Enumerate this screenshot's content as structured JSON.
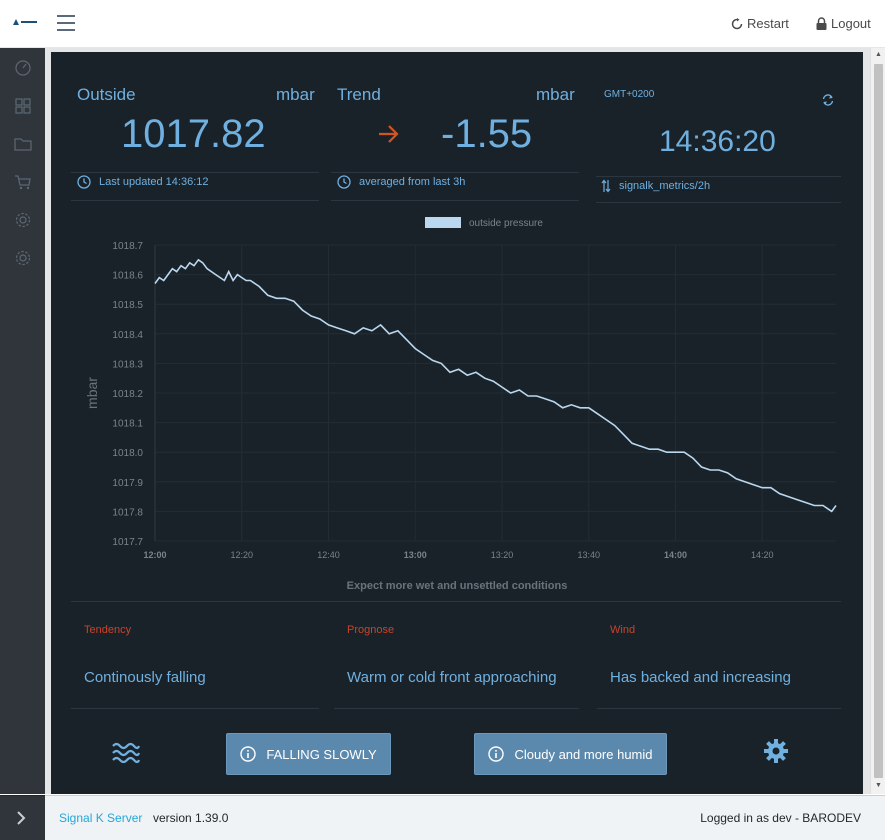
{
  "header": {
    "logo_text": "Signal K",
    "restart_label": "Restart",
    "logout_label": "Logout"
  },
  "sidebar": {
    "items": [
      {
        "icon": "speedometer-icon"
      },
      {
        "icon": "grid-icon"
      },
      {
        "icon": "folder-icon"
      },
      {
        "icon": "cart-icon"
      },
      {
        "icon": "gear-icon"
      },
      {
        "icon": "gear-icon"
      }
    ]
  },
  "widgets": {
    "outside": {
      "label": "Outside",
      "unit": "mbar",
      "value": "1017.82",
      "footer": "Last updated 14:36:12"
    },
    "trend": {
      "label": "Trend",
      "unit": "mbar",
      "value": "-1.55",
      "footer": "averaged from last 3h",
      "arrow_color": "#d4541f"
    },
    "clock": {
      "timezone": "GMT+0200",
      "time": "14:36:20",
      "footer": "signalk_metrics/2h"
    }
  },
  "chart_data": {
    "type": "line",
    "legend": "outside pressure",
    "ylabel": "mbar",
    "xlabel": "",
    "ylim": [
      1017.7,
      1018.7
    ],
    "yticks": [
      "1017.7",
      "1017.8",
      "1017.9",
      "1018.0",
      "1018.1",
      "1018.2",
      "1018.3",
      "1018.4",
      "1018.5",
      "1018.6",
      "1018.7"
    ],
    "xticks": [
      {
        "label": "12:00",
        "bold": true
      },
      {
        "label": "12:20",
        "bold": false
      },
      {
        "label": "12:40",
        "bold": false
      },
      {
        "label": "13:00",
        "bold": true
      },
      {
        "label": "13:20",
        "bold": false
      },
      {
        "label": "13:40",
        "bold": false
      },
      {
        "label": "14:00",
        "bold": true
      },
      {
        "label": "14:20",
        "bold": false
      }
    ],
    "x_minutes_start": 0,
    "x_minutes_end": 157,
    "series": [
      {
        "name": "outside pressure",
        "color": "#b9d8f0",
        "x": [
          0,
          1,
          2,
          3,
          4,
          5,
          6,
          7,
          8,
          9,
          10,
          11,
          12,
          14,
          16,
          17,
          18,
          19,
          20,
          21,
          22,
          24,
          26,
          28,
          30,
          32,
          34,
          36,
          38,
          40,
          42,
          44,
          46,
          48,
          50,
          52,
          54,
          56,
          58,
          60,
          62,
          64,
          66,
          68,
          70,
          72,
          74,
          76,
          78,
          80,
          82,
          84,
          86,
          88,
          90,
          92,
          94,
          96,
          98,
          100,
          102,
          104,
          106,
          108,
          110,
          112,
          114,
          116,
          118,
          120,
          122,
          124,
          126,
          128,
          130,
          132,
          134,
          136,
          138,
          140,
          142,
          144,
          146,
          148,
          150,
          152,
          154,
          155,
          156,
          157
        ],
        "values": [
          1018.57,
          1018.59,
          1018.58,
          1018.6,
          1018.62,
          1018.61,
          1018.63,
          1018.62,
          1018.64,
          1018.63,
          1018.65,
          1018.64,
          1018.62,
          1018.6,
          1018.58,
          1018.61,
          1018.58,
          1018.6,
          1018.59,
          1018.58,
          1018.58,
          1018.56,
          1018.53,
          1018.52,
          1018.52,
          1018.51,
          1018.48,
          1018.46,
          1018.45,
          1018.43,
          1018.42,
          1018.41,
          1018.4,
          1018.42,
          1018.41,
          1018.43,
          1018.4,
          1018.41,
          1018.38,
          1018.35,
          1018.33,
          1018.31,
          1018.3,
          1018.27,
          1018.28,
          1018.26,
          1018.27,
          1018.25,
          1018.24,
          1018.22,
          1018.2,
          1018.21,
          1018.19,
          1018.19,
          1018.18,
          1018.17,
          1018.15,
          1018.16,
          1018.15,
          1018.15,
          1018.13,
          1018.11,
          1018.09,
          1018.06,
          1018.03,
          1018.02,
          1018.01,
          1018.01,
          1018.0,
          1018.0,
          1018.0,
          1017.98,
          1017.95,
          1017.94,
          1017.94,
          1017.93,
          1017.91,
          1017.9,
          1017.89,
          1017.88,
          1017.88,
          1017.86,
          1017.85,
          1017.84,
          1017.83,
          1017.82,
          1017.82,
          1017.81,
          1017.8,
          1017.82
        ]
      }
    ]
  },
  "forecast": {
    "summary": "Expect more wet and unsettled conditions",
    "cards": [
      {
        "title": "Tendency",
        "text": "Continously falling"
      },
      {
        "title": "Prognose",
        "text": "Warm or cold front approaching"
      },
      {
        "title": "Wind",
        "text": "Has backed and increasing"
      }
    ]
  },
  "buttons": {
    "falling_label": "FALLING SLOWLY",
    "weather_label": "Cloudy and more humid"
  },
  "footer": {
    "brand": "Signal K Server",
    "version": "version 1.39.0",
    "login": "Logged in as dev - BARODEV"
  },
  "colors": {
    "accent": "#6fb0e0",
    "warning": "#c8432b",
    "panel_bg": "#1a2229"
  }
}
